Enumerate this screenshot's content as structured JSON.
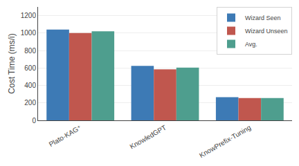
{
  "chart_data": {
    "type": "bar",
    "ylabel": "Cost Time (ms/i)",
    "categories": [
      "Plato-KAG⁺",
      "KnowledGPT",
      "KnowPrefix-Tuning"
    ],
    "series": [
      {
        "name": "Wizard Seen",
        "color": "#3d7ab5",
        "values": [
          1040,
          625,
          265
        ]
      },
      {
        "name": "Wizard Unseen",
        "color": "#c0574e",
        "values": [
          1000,
          585,
          255
        ]
      },
      {
        "name": "Avg.",
        "color": "#4e9e8e",
        "values": [
          1020,
          605,
          255
        ]
      }
    ],
    "ylim": [
      0,
      1300
    ],
    "yticks": [
      0,
      200,
      400,
      600,
      800,
      1000,
      1200
    ],
    "grid": true,
    "legend": "upper right"
  }
}
